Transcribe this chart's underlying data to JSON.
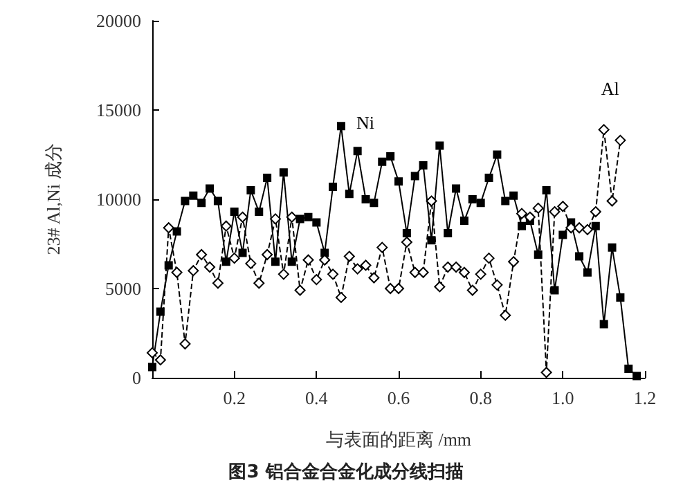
{
  "chart_data": {
    "type": "line",
    "title": "图3 铝合金合金化成分线扫描",
    "xlabel": "与表面的距离 /mm",
    "ylabel": "23# Al,Ni 成分",
    "x": [
      0,
      0.02,
      0.04,
      0.06,
      0.08,
      0.1,
      0.12,
      0.14,
      0.16,
      0.18,
      0.2,
      0.22,
      0.24,
      0.26,
      0.28,
      0.3,
      0.32,
      0.34,
      0.36,
      0.38,
      0.4,
      0.42,
      0.44,
      0.46,
      0.48,
      0.5,
      0.52,
      0.54,
      0.56,
      0.58,
      0.6,
      0.62,
      0.64,
      0.66,
      0.68,
      0.7,
      0.72,
      0.74,
      0.76,
      0.78,
      0.8,
      0.82,
      0.84,
      0.86,
      0.88,
      0.9,
      0.92,
      0.94,
      0.96,
      0.98,
      1.0,
      1.02,
      1.04,
      1.06,
      1.08,
      1.1,
      1.12,
      1.14,
      1.16,
      1.18
    ],
    "series": [
      {
        "name": "Ni",
        "color": "#000000",
        "marker": "square",
        "line_style": "solid",
        "values": [
          600,
          3700,
          6300,
          8200,
          9900,
          10200,
          9800,
          10600,
          9900,
          6500,
          9300,
          7000,
          10500,
          9300,
          11200,
          6500,
          11500,
          6500,
          8900,
          9000,
          8700,
          7000,
          10700,
          14100,
          10300,
          12700,
          10000,
          9800,
          12100,
          12400,
          11000,
          8100,
          11300,
          11900,
          7700,
          13000,
          8100,
          10600,
          8800,
          10000,
          9800,
          11200,
          12500,
          9900,
          10200,
          8500,
          8800,
          6900,
          10500,
          4900,
          8000,
          8700,
          6800,
          5900,
          8500,
          3000,
          7300,
          4500,
          500,
          100
        ]
      },
      {
        "name": "Al",
        "color": "#000000",
        "marker": "diamond",
        "line_style": "dashed",
        "x": [
          0,
          0.02,
          0.04,
          0.06,
          0.08,
          0.1,
          0.12,
          0.14,
          0.16,
          0.18,
          0.2,
          0.22,
          0.24,
          0.26,
          0.28,
          0.3,
          0.32,
          0.34,
          0.36,
          0.38,
          0.4,
          0.42,
          0.44,
          0.46,
          0.48,
          0.5,
          0.52,
          0.54,
          0.56,
          0.58,
          0.6,
          0.62,
          0.64,
          0.66,
          0.68,
          0.7,
          0.72,
          0.74,
          0.76,
          0.78,
          0.8,
          0.82,
          0.84,
          0.86,
          0.88,
          0.9,
          0.92,
          0.94,
          0.96,
          0.98,
          1.0,
          1.02,
          1.04,
          1.06,
          1.08,
          1.1,
          1.12,
          1.14
        ],
        "values": [
          1400,
          1000,
          8400,
          5900,
          1900,
          6000,
          6900,
          6200,
          5300,
          8500,
          6700,
          9000,
          6400,
          5300,
          6900,
          8900,
          5800,
          9000,
          4900,
          6600,
          5500,
          6600,
          5800,
          4500,
          6800,
          6100,
          6300,
          5600,
          7300,
          5000,
          5000,
          7600,
          5900,
          5900,
          9900,
          5100,
          6200,
          6200,
          5900,
          4900,
          5800,
          6700,
          5200,
          3500,
          6500,
          9200,
          9000,
          9500,
          300,
          9300,
          9600,
          8400,
          8400,
          8300,
          9300,
          13900,
          9900,
          13300
        ]
      }
    ],
    "xlim": [
      0,
      1.2
    ],
    "xticks": [
      0.2,
      0.4,
      0.6,
      0.8,
      {
        "value": 1,
        "label": "1.0"
      },
      1.2
    ],
    "ylim": [
      0,
      20000
    ],
    "yticks": [
      0,
      5000,
      10000,
      15000,
      20000
    ],
    "grid": false
  }
}
